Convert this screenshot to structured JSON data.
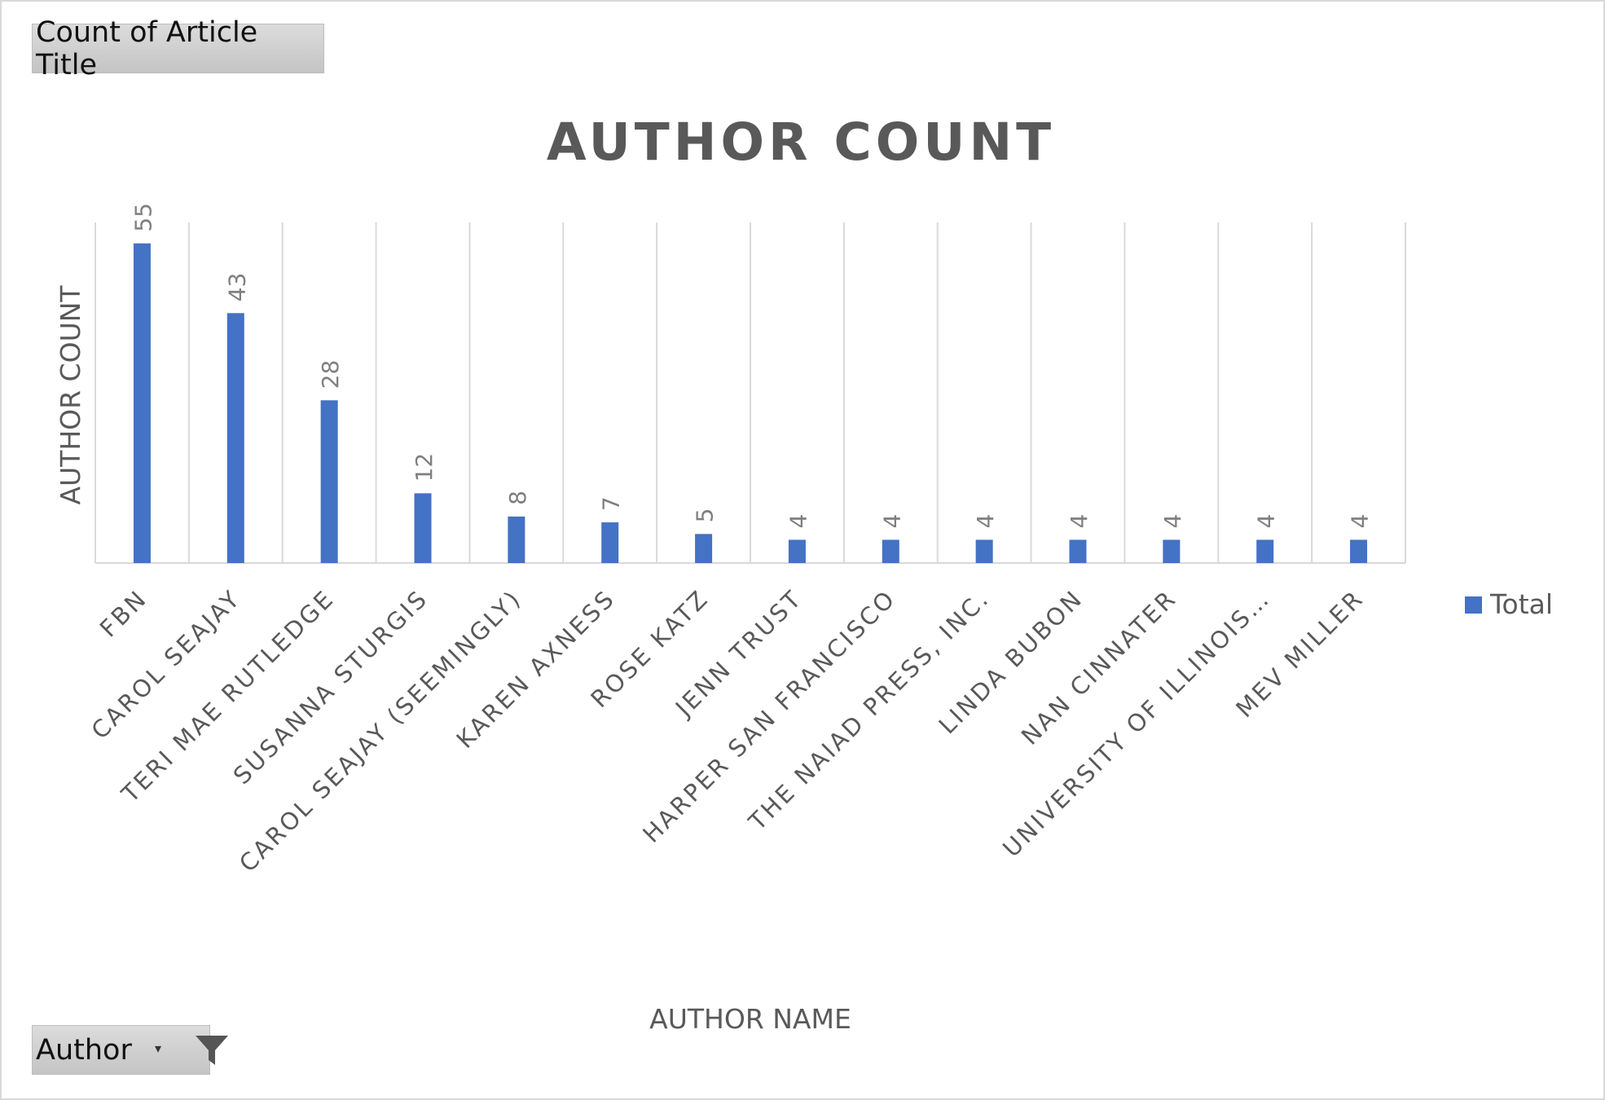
{
  "pivot": {
    "value_field_button": "Count of Article Title",
    "axis_field_button": "Author",
    "axis_field_icons": [
      "dropdown-arrow-icon",
      "filter-icon"
    ]
  },
  "chart_data": {
    "type": "bar",
    "title": "AUTHOR COUNT",
    "xlabel": "AUTHOR NAME",
    "ylabel": "AUTHOR COUNT",
    "categories": [
      "FBN",
      "CAROL SEAJAY",
      "TERI MAE RUTLEDGE",
      "SUSANNA STURGIS",
      "CAROL SEAJAY (SEEMINGLY)",
      "KAREN AXNESS",
      "ROSE KATZ",
      "JENN TRUST",
      "HARPER SAN FRANCISCO",
      "THE NAIAD PRESS, INC.",
      "LINDA BUBON",
      "NAN CINNATER",
      "UNIVERSITY OF ILLINOIS…",
      "MEV MILLER"
    ],
    "series": [
      {
        "name": "Total",
        "values": [
          55,
          43,
          28,
          12,
          8,
          7,
          5,
          4,
          4,
          4,
          4,
          4,
          4,
          4
        ],
        "color": "#4472c4"
      }
    ],
    "ylim": [
      0,
      60
    ],
    "data_labels": true,
    "grid": "vertical category gridlines",
    "legend": "right",
    "colors": {
      "bar": "#4472c4",
      "gridline": "#d9d9d9",
      "title": "#595959",
      "label": "#595959",
      "data_label": "#7f7f7f"
    }
  }
}
